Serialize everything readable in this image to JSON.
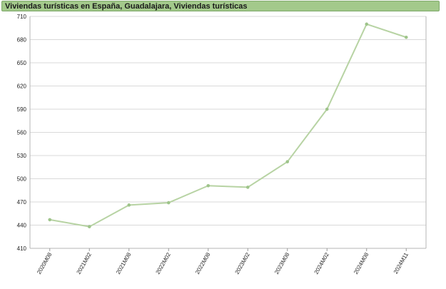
{
  "chart_data": {
    "type": "line",
    "title": "Viviendas turísticas en España, Guadalajara, Viviendas turísticas",
    "xlabel": "",
    "ylabel": "",
    "categories": [
      "2020M08",
      "2021M02",
      "2021M08",
      "2022M02",
      "2022M08",
      "2023M02",
      "2023M08",
      "2024M02",
      "2024M08",
      "2024M11"
    ],
    "series": [
      {
        "values": [
          447,
          438,
          466,
          469,
          491,
          489,
          522,
          590,
          700,
          683
        ]
      }
    ],
    "ylim": [
      410,
      710
    ],
    "yticks": [
      410,
      440,
      470,
      500,
      530,
      560,
      590,
      620,
      650,
      680,
      710
    ],
    "grid": true,
    "colors": {
      "line": "#b7d3a3",
      "marker": "#9ec48a",
      "title_bg": "#a3c98b",
      "grid": "#d9d9d9"
    }
  }
}
